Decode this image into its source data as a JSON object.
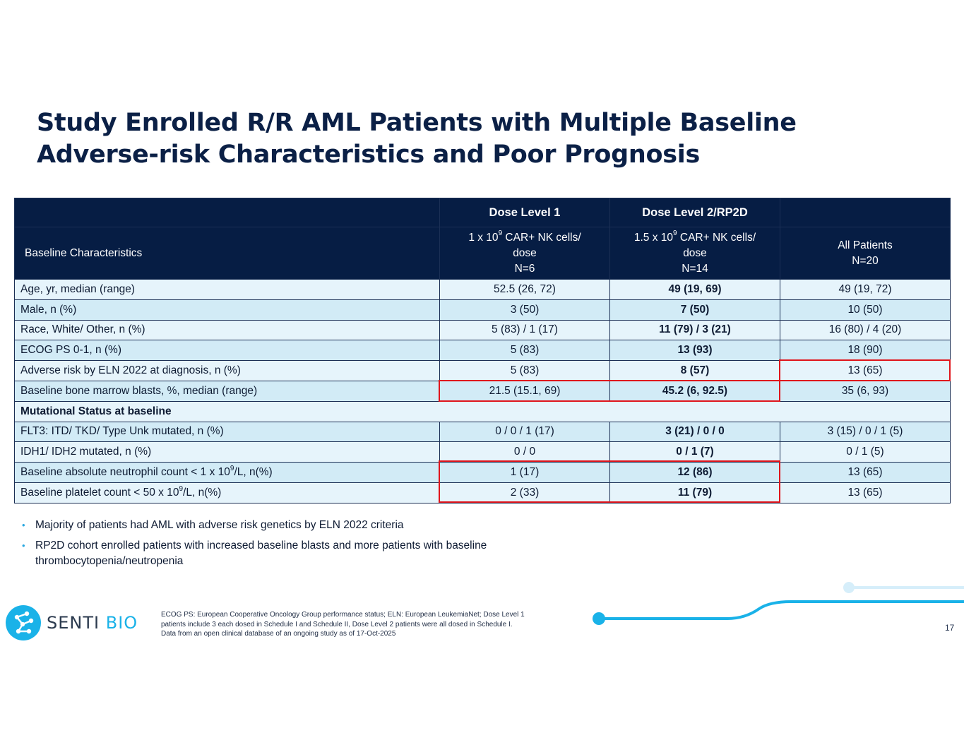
{
  "title": {
    "line1": "Study Enrolled R/R AML Patients with Multiple Baseline",
    "line2": "Adverse-risk Characteristics and Poor Prognosis"
  },
  "table": {
    "header1": [
      "",
      "Dose Level 1",
      "Dose Level 2/RP2D",
      ""
    ],
    "header2": {
      "label": "Baseline Characteristics",
      "dl1": {
        "pre": "1 x 10",
        "sup": "9",
        "post": " CAR+ NK cells/",
        "line2": "dose",
        "line3": "N=6"
      },
      "dl2": {
        "pre": "1.5 x 10",
        "sup": "9",
        "post": " CAR+ NK cells/",
        "line2": "dose",
        "line3": "N=14"
      },
      "all": {
        "line1": "All Patients",
        "line2": "N=20"
      }
    },
    "rows": [
      {
        "label": "Age, yr, median (range)",
        "dl1": "52.5 (26, 72)",
        "dl2": "49 (19, 69)",
        "all": "49 (19, 72)"
      },
      {
        "label": "Male, n (%)",
        "dl1": "3 (50)",
        "dl2": "7 (50)",
        "all": "10 (50)"
      },
      {
        "label": "Race, White/ Other, n (%)",
        "dl1": "5 (83) / 1 (17)",
        "dl2": "11 (79) / 3 (21)",
        "all": "16 (80) / 4 (20)"
      },
      {
        "label": "ECOG PS 0-1, n (%)",
        "dl1": "5 (83)",
        "dl2": "13 (93)",
        "all": "18 (90)"
      },
      {
        "label": "Adverse risk by ELN 2022 at diagnosis, n (%)",
        "dl1": "5 (83)",
        "dl2": "8 (57)",
        "all": "13 (65)"
      },
      {
        "label": "Baseline bone marrow blasts, %, median (range)",
        "dl1": "21.5 (15.1, 69)",
        "dl2": "45.2 (6, 92.5)",
        "all": "35 (6, 93)"
      },
      {
        "label": "Mutational Status at baseline"
      },
      {
        "label": "FLT3: ITD/ TKD/ Type Unk mutated, n (%)",
        "dl1": "0 / 0 / 1 (17)",
        "dl2": "3 (21) / 0 / 0",
        "all": "3 (15) / 0 / 1 (5)"
      },
      {
        "label": "IDH1/ IDH2 mutated, n (%)",
        "dl1": "0 / 0",
        "dl2": "0 / 1 (7)",
        "all": "0 / 1 (5)"
      },
      {
        "label_pre": "Baseline absolute neutrophil count < 1 x 10",
        "label_sup": "9",
        "label_post": "/L, n(%)",
        "dl1": "1 (17)",
        "dl2": "12 (86)",
        "all": "13 (65)"
      },
      {
        "label_pre": "Baseline platelet count < 50 x 10",
        "label_sup": "9",
        "label_post": "/L, n(%)",
        "dl1": "2 (33)",
        "dl2": "11 (79)",
        "all": "13 (65)"
      }
    ]
  },
  "bullets": [
    "Majority of patients had AML with adverse risk genetics by ELN 2022 criteria",
    "RP2D cohort enrolled patients with increased baseline blasts and more patients with baseline thrombocytopenia/neutropenia"
  ],
  "bullet_glyph": "•",
  "logo": {
    "word1": "SENTI",
    "word2": "BIO"
  },
  "footnote": {
    "line1": "ECOG PS: European Cooperative Oncology Group performance status; ELN: European LeukemiaNet; Dose Level 1",
    "line2": "patients include 3 each dosed in Schedule I and Schedule II, Dose Level 2 patients were all dosed in Schedule I.",
    "line3": "Data from an open clinical database of an ongoing study as of 17-Oct-2025"
  },
  "page_number": "17",
  "colors": {
    "title": "#0b2046",
    "header_bg": "#061d44",
    "row_light": "#e6f4fb",
    "row_dark": "#d2ebf6",
    "highlight": "#e0151c",
    "accent": "#1ab2e8"
  }
}
